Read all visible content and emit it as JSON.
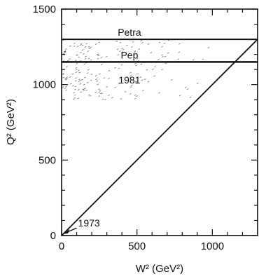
{
  "chart_data": {
    "type": "line",
    "title": "",
    "xlabel": "W² (GeV²)",
    "ylabel": "Q² (GeV²)",
    "xlim": [
      0,
      1300
    ],
    "ylim": [
      0,
      1500
    ],
    "x_ticks": [
      0,
      500,
      1000
    ],
    "y_ticks": [
      0,
      500,
      1000,
      1500
    ],
    "grid": false,
    "series": [
      {
        "values": [
          [
            0,
            0
          ],
          [
            1300,
            1300
          ]
        ]
      }
    ],
    "hlines": [
      {
        "label": "Petra",
        "y": 1300
      },
      {
        "label": "Pep",
        "y": 1150
      }
    ],
    "shaded_region": {
      "label": "1981",
      "y_range": [
        900,
        1300
      ]
    },
    "annotations": [
      {
        "text": "1973",
        "x": 100,
        "y": 50,
        "arrow_to": [
          10,
          10
        ]
      }
    ]
  }
}
